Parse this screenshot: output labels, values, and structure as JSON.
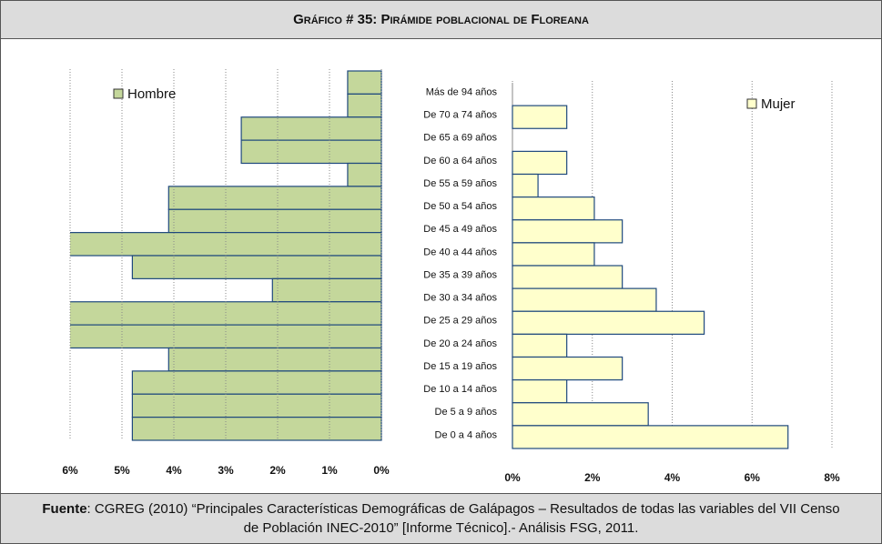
{
  "chart_data": {
    "type": "pyramid",
    "title": "Gráfico # 35: Pirámide poblacional de Floreana",
    "categories": [
      "Más de 94 años",
      "De 70 a 74 años",
      "De 65 a 69 años",
      "De 60 a 64 años",
      "De 55 a 59 años",
      "De 50 a 54 años",
      "De 45 a 49 años",
      "De 40 a 44 años",
      "De 35 a 39 años",
      "De 30 a 34 años",
      "De 25 a 29 años",
      "De 20 a 24 años",
      "De 15 a 19 años",
      "De 10 a 14 años",
      "De 5 a 9 años",
      "De 0 a 4 años"
    ],
    "grid": true,
    "series": [
      {
        "name": "Hombre",
        "color": "#c4d79b",
        "values": [
          0.65,
          0.65,
          2.7,
          2.7,
          0.65,
          4.1,
          4.1,
          6.2,
          4.8,
          2.1,
          6.2,
          6.2,
          4.1,
          4.8,
          4.8,
          4.8
        ],
        "xlim": [
          6,
          0
        ],
        "xticks": [
          {
            "value": 6,
            "label": "6%"
          },
          {
            "value": 5,
            "label": "5%"
          },
          {
            "value": 4,
            "label": "4%"
          },
          {
            "value": 3,
            "label": "3%"
          },
          {
            "value": 2,
            "label": "2%"
          },
          {
            "value": 1,
            "label": "1%"
          },
          {
            "value": 0,
            "label": "0%"
          }
        ]
      },
      {
        "name": "Mujer",
        "color": "#ffffcc",
        "values": [
          0,
          1.36,
          0,
          1.36,
          0.64,
          2.05,
          2.75,
          2.05,
          2.75,
          3.6,
          4.8,
          1.36,
          2.75,
          1.36,
          3.4,
          6.9
        ],
        "xlim": [
          0,
          8
        ],
        "xticks": [
          {
            "value": 0,
            "label": "0%"
          },
          {
            "value": 2,
            "label": "2%"
          },
          {
            "value": 4,
            "label": "4%"
          },
          {
            "value": 6,
            "label": "6%"
          },
          {
            "value": 8,
            "label": "8%"
          }
        ]
      }
    ]
  },
  "footer": {
    "label": "Fuente",
    "text": ": CGREG (2010) “Principales Características Demográficas de Galápagos – Resultados de todas las variables del VII Censo de Población INEC-2010” [Informe Técnico].- Análisis FSG, 2011."
  }
}
